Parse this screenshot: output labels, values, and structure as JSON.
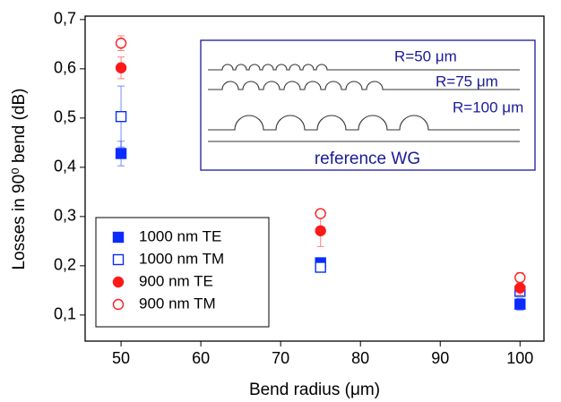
{
  "chart_data": {
    "type": "scatter",
    "xlabel": "Bend radius (μm)",
    "ylabel": "Losses in 90⁰ bend (dB)",
    "x": [
      50,
      75,
      100
    ],
    "series": [
      {
        "name": "1000 nm TE",
        "color": "#0a2cff",
        "marker": "square",
        "filled": true,
        "values": [
          0.428,
          0.206,
          0.122
        ],
        "errors": [
          0.025,
          0.005,
          0.012
        ]
      },
      {
        "name": "1000 nm TM",
        "color": "#0a2cff",
        "marker": "square",
        "filled": false,
        "values": [
          0.503,
          0.197,
          0.148
        ],
        "errors": [
          0.062,
          0.005,
          0.008
        ]
      },
      {
        "name": "900 nm TE",
        "color": "#ff1a1a",
        "marker": "circle",
        "filled": true,
        "values": [
          0.602,
          0.271,
          0.155
        ],
        "errors": [
          0.022,
          0.032,
          0.015
        ]
      },
      {
        "name": "900 nm TM",
        "color": "#ff1a1a",
        "marker": "circle",
        "filled": false,
        "values": [
          0.652,
          0.306,
          0.176
        ],
        "errors": [
          0.015,
          0.005,
          0.01
        ]
      }
    ],
    "xlim": [
      45.5,
      103
    ],
    "xticks": [
      50,
      60,
      70,
      80,
      90,
      100
    ],
    "ylim": [
      0.047,
      0.707
    ],
    "yticks": [
      {
        "value": 0.1,
        "label": "0,1"
      },
      {
        "value": 0.2,
        "label": "0,2"
      },
      {
        "value": 0.3,
        "label": "0,3"
      },
      {
        "value": 0.4,
        "label": "0,4"
      },
      {
        "value": 0.5,
        "label": "0,5"
      },
      {
        "value": 0.6,
        "label": "0,6"
      },
      {
        "value": 0.7,
        "label": "0,7"
      }
    ],
    "legend": "lower left",
    "annotations": [
      "R=50 μm",
      "R=75 μm",
      "R=100 μm",
      "reference WG"
    ]
  }
}
